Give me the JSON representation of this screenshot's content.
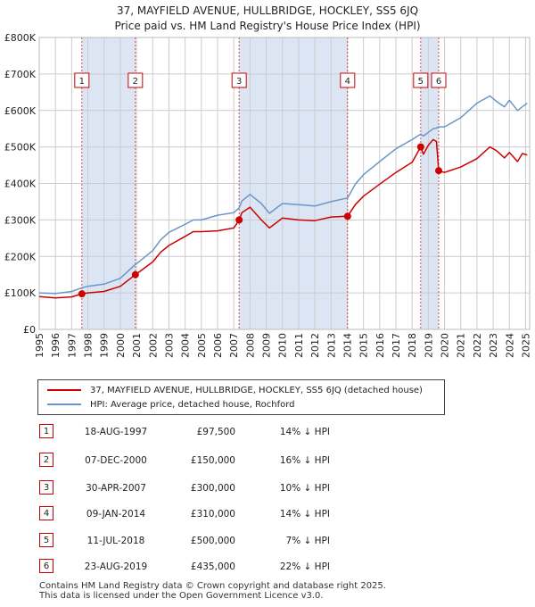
{
  "title_line1": "37, MAYFIELD AVENUE, HULLBRIDGE, HOCKLEY, SS5 6JQ",
  "title_line2": "Price paid vs. HM Land Registry's House Price Index (HPI)",
  "colors": {
    "property": "#cc0000",
    "hpi": "#6b96c8",
    "band": "#dce5f3",
    "grid": "#cccccc"
  },
  "chart_data": {
    "type": "line",
    "title": "37, MAYFIELD AVENUE, HULLBRIDGE, HOCKLEY, SS5 6JQ",
    "xlabel": "",
    "ylabel": "",
    "xlim": [
      1995,
      2025.25
    ],
    "ylim": [
      0,
      800000
    ],
    "x_ticks": [
      "1995",
      "1996",
      "1997",
      "1998",
      "1999",
      "2000",
      "2001",
      "2002",
      "2003",
      "2004",
      "2005",
      "2006",
      "2007",
      "2008",
      "2009",
      "2010",
      "2011",
      "2012",
      "2013",
      "2014",
      "2015",
      "2016",
      "2017",
      "2018",
      "2019",
      "2020",
      "2021",
      "2022",
      "2023",
      "2024",
      "2025"
    ],
    "y_ticks": [
      {
        "value": 0,
        "label": "£0"
      },
      {
        "value": 100000,
        "label": "£100K"
      },
      {
        "value": 200000,
        "label": "£200K"
      },
      {
        "value": 300000,
        "label": "£300K"
      },
      {
        "value": 400000,
        "label": "£400K"
      },
      {
        "value": 500000,
        "label": "£500K"
      },
      {
        "value": 600000,
        "label": "£600K"
      },
      {
        "value": 700000,
        "label": "£700K"
      },
      {
        "value": 800000,
        "label": "£800K"
      }
    ],
    "grid": true,
    "series": [
      {
        "name": "37, MAYFIELD AVENUE, HULLBRIDGE, HOCKLEY, SS5 6JQ (detached house)",
        "x": [
          1995.0,
          1996.0,
          1997.0,
          1997.63,
          1998.0,
          1999.0,
          2000.0,
          2000.93,
          2001.0,
          2002.0,
          2002.5,
          2003.0,
          2004.0,
          2004.5,
          2005.0,
          2006.0,
          2007.0,
          2007.33,
          2007.5,
          2008.0,
          2008.7,
          2009.2,
          2010.0,
          2011.0,
          2012.0,
          2013.0,
          2014.02,
          2014.5,
          2015.0,
          2016.0,
          2017.0,
          2018.0,
          2018.53,
          2018.7,
          2019.0,
          2019.3,
          2019.5,
          2019.64,
          2020.0,
          2021.0,
          2022.0,
          2022.8,
          2023.2,
          2023.7,
          2024.0,
          2024.5,
          2024.8,
          2025.1
        ],
        "values": [
          90000,
          86000,
          89000,
          97500,
          100000,
          104000,
          118000,
          150000,
          152000,
          185000,
          212000,
          230000,
          255000,
          268000,
          268000,
          270000,
          278000,
          300000,
          320000,
          335000,
          300000,
          278000,
          305000,
          300000,
          298000,
          308000,
          310000,
          342000,
          365000,
          398000,
          430000,
          458000,
          500000,
          480000,
          505000,
          520000,
          515000,
          435000,
          430000,
          445000,
          468000,
          500000,
          490000,
          470000,
          485000,
          460000,
          482000,
          478000
        ]
      },
      {
        "name": "HPI: Average price, detached house, Rochford",
        "x": [
          1995.0,
          1996.0,
          1997.0,
          1997.63,
          1998.0,
          1999.0,
          2000.0,
          2000.93,
          2001.0,
          2002.0,
          2002.5,
          2003.0,
          2004.0,
          2004.5,
          2005.0,
          2006.0,
          2007.0,
          2007.33,
          2007.5,
          2008.0,
          2008.7,
          2009.2,
          2010.0,
          2011.0,
          2012.0,
          2013.0,
          2014.02,
          2014.5,
          2015.0,
          2016.0,
          2017.0,
          2018.0,
          2018.53,
          2018.7,
          2019.0,
          2019.3,
          2019.5,
          2019.64,
          2020.0,
          2021.0,
          2022.0,
          2022.8,
          2023.2,
          2023.7,
          2024.0,
          2024.5,
          2024.8,
          2025.1
        ],
        "values": [
          100000,
          98000,
          104000,
          114000,
          118000,
          124000,
          140000,
          178000,
          180000,
          216000,
          246000,
          266000,
          288000,
          300000,
          300000,
          313000,
          320000,
          333000,
          352000,
          370000,
          345000,
          318000,
          345000,
          342000,
          338000,
          350000,
          360000,
          398000,
          424000,
          460000,
          495000,
          520000,
          535000,
          530000,
          540000,
          550000,
          552000,
          555000,
          555000,
          580000,
          620000,
          640000,
          625000,
          610000,
          628000,
          600000,
          610000,
          620000
        ]
      }
    ],
    "sale_markers": [
      {
        "label": "1",
        "x": 1997.63,
        "value": 97500
      },
      {
        "label": "2",
        "x": 2000.93,
        "value": 150000
      },
      {
        "label": "3",
        "x": 2007.33,
        "value": 300000
      },
      {
        "label": "4",
        "x": 2014.02,
        "value": 310000
      },
      {
        "label": "5",
        "x": 2018.53,
        "value": 500000
      },
      {
        "label": "6",
        "x": 2019.64,
        "value": 435000
      }
    ],
    "shaded_periods": [
      [
        1997.63,
        2000.93
      ],
      [
        2007.33,
        2014.02
      ],
      [
        2018.53,
        2019.64
      ]
    ]
  },
  "legend": {
    "property": "37, MAYFIELD AVENUE, HULLBRIDGE, HOCKLEY, SS5 6JQ (detached house)",
    "hpi": "HPI: Average price, detached house, Rochford"
  },
  "transactions": [
    {
      "num": "1",
      "date": "18-AUG-1997",
      "price": "£97,500",
      "hpi": "14% ↓ HPI"
    },
    {
      "num": "2",
      "date": "07-DEC-2000",
      "price": "£150,000",
      "hpi": "16% ↓ HPI"
    },
    {
      "num": "3",
      "date": "30-APR-2007",
      "price": "£300,000",
      "hpi": "10% ↓ HPI"
    },
    {
      "num": "4",
      "date": "09-JAN-2014",
      "price": "£310,000",
      "hpi": "14% ↓ HPI"
    },
    {
      "num": "5",
      "date": "11-JUL-2018",
      "price": "£500,000",
      "hpi": "7% ↓ HPI"
    },
    {
      "num": "6",
      "date": "23-AUG-2019",
      "price": "£435,000",
      "hpi": "22% ↓ HPI"
    }
  ],
  "footer": {
    "line1": "Contains HM Land Registry data © Crown copyright and database right 2025.",
    "line2": "This data is licensed under the Open Government Licence v3.0."
  }
}
